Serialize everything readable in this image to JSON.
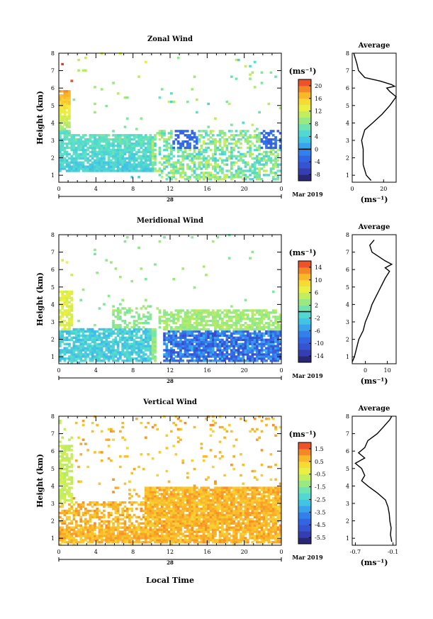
{
  "figure": {
    "bottom_xlabel": "Local Time"
  },
  "chart_data": [
    {
      "type": "heatmap",
      "title": "Zonal Wind",
      "ylabel": "Height (km)",
      "xticks": [
        "0",
        "4",
        "8",
        "12",
        "16",
        "20",
        "0"
      ],
      "xlim": [
        0,
        24
      ],
      "ylim": [
        0.6,
        8
      ],
      "yticks": [
        1,
        2,
        3,
        4,
        5,
        6,
        7,
        8
      ],
      "date_day": "28",
      "date_label": "Mar 2019",
      "colorbar": {
        "unit": "(ms⁻¹)",
        "ticks": [
          "20",
          "16",
          "12",
          "8",
          "4",
          "0",
          "-4",
          "-8"
        ],
        "vmin": -10,
        "vmax": 22,
        "zero_line": 0
      },
      "profile": {
        "title": "Average",
        "xlabel": "(ms⁻¹)",
        "xticks": [
          "0",
          "20"
        ],
        "xlim": [
          0,
          28
        ],
        "heights": [
          0.7,
          1.0,
          1.3,
          1.6,
          2.0,
          2.5,
          3.0,
          3.3,
          3.6,
          4.0,
          4.5,
          5.0,
          5.5,
          5.8,
          6.0,
          6.1,
          6.2,
          6.4,
          6.6,
          7.0,
          7.4,
          7.7,
          8.0
        ],
        "values": [
          12,
          9,
          8,
          7,
          7,
          7,
          6,
          7,
          8,
          13,
          19,
          24,
          28,
          24,
          22,
          27,
          25,
          18,
          8,
          4,
          3,
          2,
          1
        ]
      }
    },
    {
      "type": "heatmap",
      "title": "Meridional Wind",
      "ylabel": "Height (km)",
      "xticks": [
        "0",
        "4",
        "8",
        "12",
        "16",
        "20",
        "0"
      ],
      "xlim": [
        0,
        24
      ],
      "ylim": [
        0.6,
        8
      ],
      "yticks": [
        1,
        2,
        3,
        4,
        5,
        6,
        7,
        8
      ],
      "date_day": "28",
      "date_label": "Mar 2019",
      "colorbar": {
        "unit": "(ms⁻¹)",
        "ticks": [
          "14",
          "10",
          "6",
          "2",
          "-2",
          "-6",
          "-10",
          "-14"
        ],
        "vmin": -16,
        "vmax": 16,
        "zero_line": 0
      },
      "profile": {
        "title": "Average",
        "xlabel": "(ms⁻¹)",
        "xticks": [
          "0",
          "10"
        ],
        "xlim": [
          -6,
          14
        ],
        "heights": [
          0.7,
          1.0,
          1.5,
          2.0,
          2.5,
          3.0,
          3.3,
          3.6,
          4.0,
          4.5,
          5.0,
          5.5,
          5.9,
          6.1,
          6.3,
          6.5,
          7.0,
          7.4,
          7.7
        ],
        "values": [
          -6,
          -5,
          -4,
          -3,
          -1,
          0,
          1,
          2,
          3,
          5,
          7,
          9,
          11,
          9,
          12,
          9,
          3,
          2,
          4
        ]
      }
    },
    {
      "type": "heatmap",
      "title": "Vertical Wind",
      "ylabel": "Height (km)",
      "xticks": [
        "0",
        "4",
        "8",
        "12",
        "16",
        "20",
        "0"
      ],
      "xlim": [
        0,
        24
      ],
      "ylim": [
        0.6,
        8
      ],
      "yticks": [
        1,
        2,
        3,
        4,
        5,
        6,
        7,
        8
      ],
      "date_day": "28",
      "date_label": "Mar 2019",
      "colorbar": {
        "unit": "(ms⁻¹)",
        "ticks": [
          "1.5",
          "0.5",
          "-0.5",
          "-1.5",
          "-2.5",
          "-3.5",
          "-4.5",
          "-5.5"
        ],
        "vmin": -6,
        "vmax": 2
      },
      "profile": {
        "title": "Average",
        "xlabel": "(ms⁻¹)",
        "xticks": [
          "-0.7",
          "-0.1"
        ],
        "xlim": [
          -0.75,
          -0.05
        ],
        "heights": [
          0.8,
          1.2,
          1.6,
          2.0,
          2.4,
          2.8,
          3.2,
          3.6,
          4.0,
          4.3,
          4.6,
          5.0,
          5.3,
          5.6,
          5.9,
          6.2,
          6.6,
          7.0,
          7.4,
          7.8,
          8.0
        ],
        "values": [
          -0.12,
          -0.14,
          -0.13,
          -0.15,
          -0.16,
          -0.18,
          -0.22,
          -0.35,
          -0.5,
          -0.6,
          -0.55,
          -0.6,
          -0.7,
          -0.55,
          -0.65,
          -0.55,
          -0.5,
          -0.35,
          -0.25,
          -0.15,
          -0.12
        ]
      }
    }
  ]
}
